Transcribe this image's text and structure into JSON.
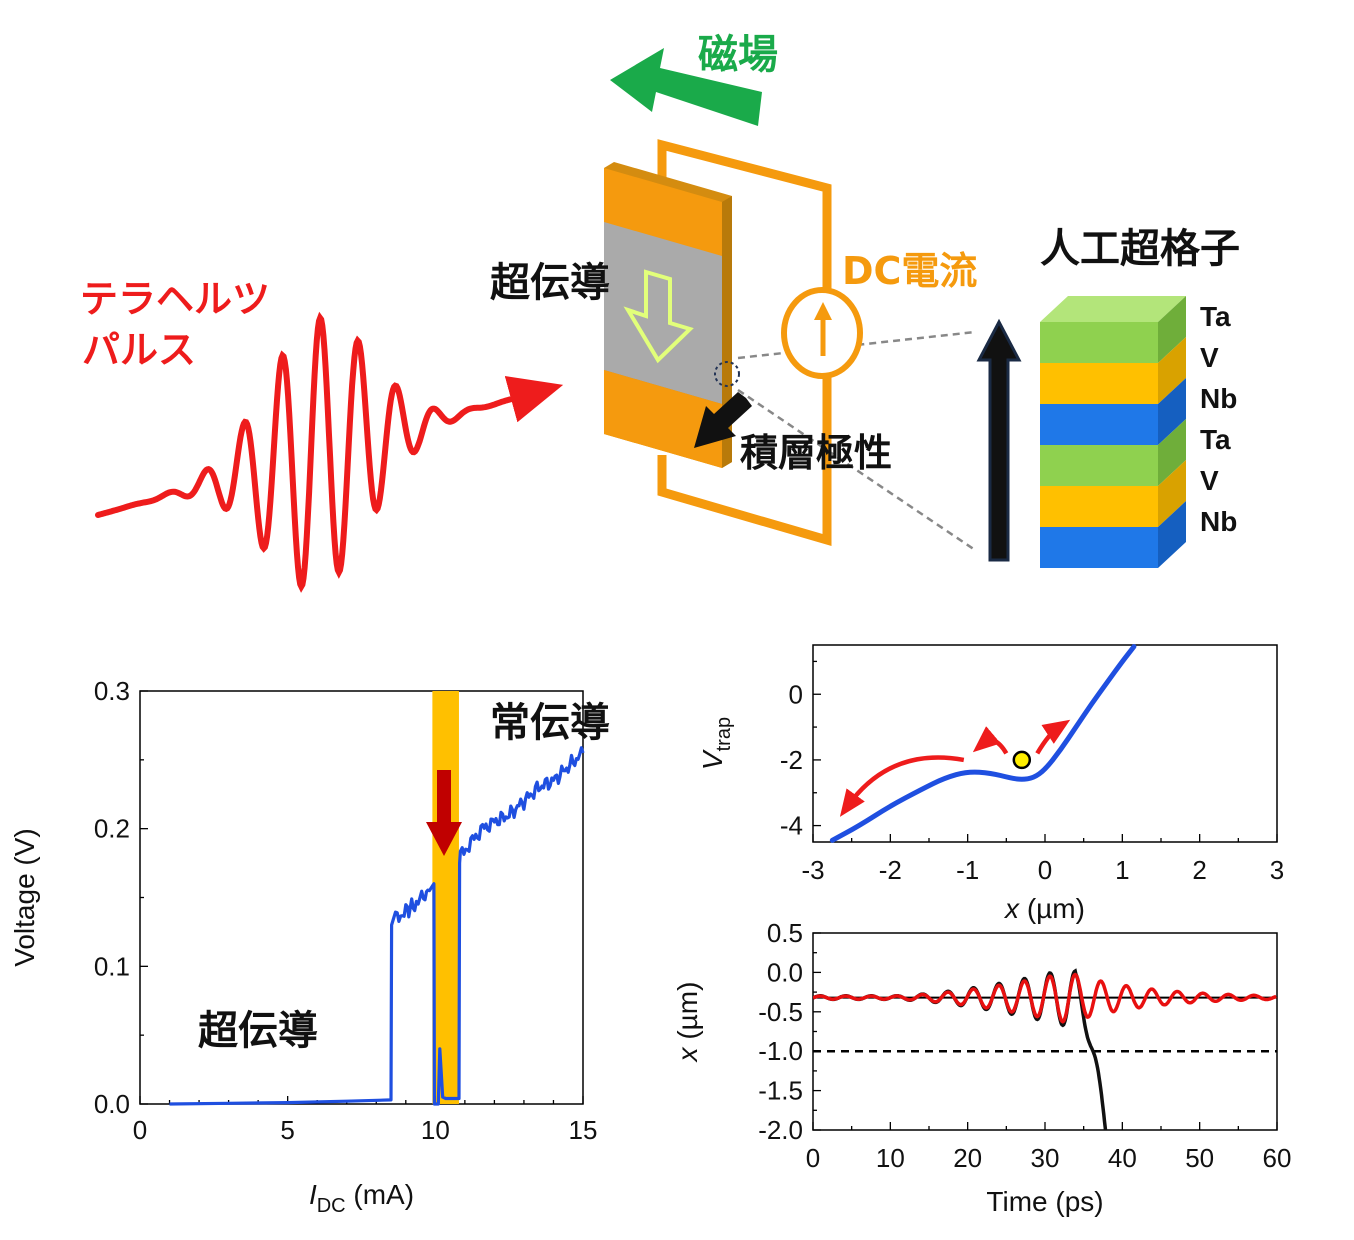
{
  "schematic": {
    "magnetic_field_label": "磁場",
    "terahertz_label_line1": "テラヘルツ",
    "terahertz_label_line2": "パルス",
    "superconducting_label": "超伝導",
    "dc_current_label": "DC電流",
    "stacking_polarity_label": "積層極性",
    "superlattice_title": "人工超格子",
    "layers": [
      "Ta",
      "V",
      "Nb",
      "Ta",
      "V",
      "Nb"
    ],
    "colors": {
      "Ta": "#8fd14f",
      "V": "#ffc000",
      "Nb": "#1f78e8",
      "thz": "#ee1c1c",
      "field": "#1aaa4a",
      "circuit": "#f59a0e"
    }
  },
  "chart_data": [
    {
      "type": "line",
      "ylabel": "Voltage (V)",
      "xlabel_main": "I",
      "xlabel_sub": "DC",
      "xlabel_unit": " (mA)",
      "xlim": [
        0,
        15
      ],
      "ylim": [
        0.0,
        0.3
      ],
      "xticks": [
        "0",
        "5",
        "10",
        "15"
      ],
      "yticks": [
        "0.0",
        "0.1",
        "0.2",
        "0.3"
      ],
      "annotations": [
        "常伝導",
        "超伝導"
      ],
      "highlight_band_x": [
        9.9,
        10.8
      ],
      "series": [
        {
          "color": "#1f4fe0",
          "x": [
            1,
            3,
            5,
            7,
            8.5,
            8.52,
            8.65,
            9,
            9.3,
            9.6,
            9.8,
            9.95,
            9.97,
            10.1,
            10.15,
            10.25,
            10.35,
            10.8,
            10.82,
            10.85,
            11.2,
            11.6,
            12,
            12.5,
            13,
            13.5,
            14,
            14.5,
            15
          ],
          "y": [
            0.0,
            0.0005,
            0.001,
            0.002,
            0.003,
            0.13,
            0.135,
            0.14,
            0.145,
            0.15,
            0.155,
            0.16,
            0.0,
            0.0,
            0.04,
            0.005,
            0.004,
            0.004,
            0.175,
            0.18,
            0.19,
            0.2,
            0.205,
            0.21,
            0.22,
            0.23,
            0.235,
            0.245,
            0.255
          ]
        }
      ]
    },
    {
      "type": "line",
      "ylabel_main": "V",
      "ylabel_sub": "trap",
      "xlabel_main": "x",
      "xlabel_unit": " (µm)",
      "xlim": [
        -3,
        3
      ],
      "ylim": [
        -4.5,
        1.5
      ],
      "xticks": [
        "-3",
        "-2",
        "-1",
        "0",
        "1",
        "2",
        "3"
      ],
      "yticks": [
        "-4",
        "-2",
        "0"
      ],
      "series": [
        {
          "color": "#1f4fe0",
          "x": [
            -2.75,
            -2.4,
            -2.0,
            -1.6,
            -1.3,
            -1.0,
            -0.7,
            -0.45,
            -0.3,
            -0.15,
            0.0,
            0.2,
            0.4,
            0.6,
            0.8,
            1.0,
            1.15
          ],
          "y": [
            -4.45,
            -4.0,
            -3.4,
            -2.9,
            -2.55,
            -2.35,
            -2.4,
            -2.55,
            -2.6,
            -2.55,
            -2.3,
            -1.7,
            -1.0,
            -0.3,
            0.35,
            1.0,
            1.45
          ]
        }
      ],
      "particle": {
        "x": -0.3,
        "y": -2.0,
        "color": "#ffee00"
      }
    },
    {
      "type": "line",
      "ylabel_main": "x",
      "ylabel_unit": " (µm)",
      "xlabel": "Time (ps)",
      "xlim": [
        0,
        60
      ],
      "ylim": [
        -2.0,
        0.5
      ],
      "xticks": [
        "0",
        "10",
        "20",
        "30",
        "40",
        "50",
        "60"
      ],
      "yticks": [
        "0.5",
        "0.0",
        "-0.5",
        "-1.0",
        "-1.5",
        "-2.0"
      ],
      "equilibrium_y": -0.32,
      "threshold_y": -1.0,
      "series": [
        {
          "name": "",
          "color": "#111111",
          "t_end": 38,
          "escape": true
        },
        {
          "name": "",
          "color": "#e81010",
          "t_end": 60,
          "escape": false
        }
      ]
    }
  ]
}
